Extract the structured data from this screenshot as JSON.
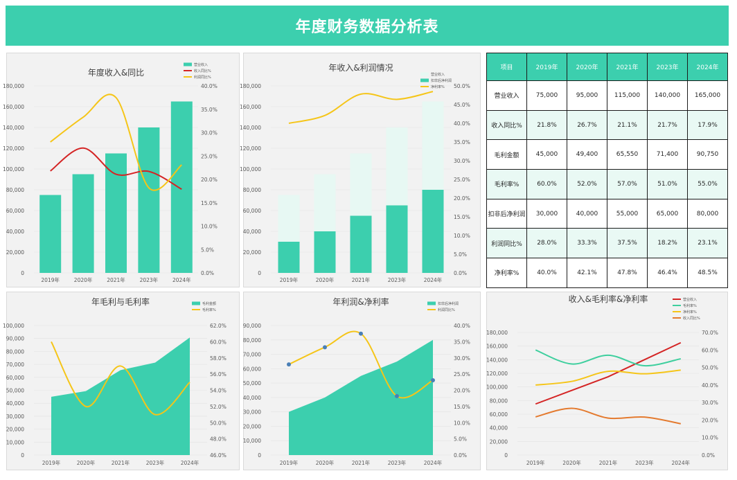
{
  "title": "年度财务数据分析表",
  "table": {
    "headers": [
      "项目",
      "2019年",
      "2020年",
      "2021年",
      "2023年",
      "2024年"
    ],
    "rows": [
      {
        "label": "营业收入",
        "values": [
          "75,000",
          "95,000",
          "115,000",
          "140,000",
          "165,000"
        ]
      },
      {
        "label": "收入同比%",
        "values": [
          "21.8%",
          "26.7%",
          "21.1%",
          "21.7%",
          "17.9%"
        ]
      },
      {
        "label": "毛利金额",
        "values": [
          "45,000",
          "49,400",
          "65,550",
          "71,400",
          "90,750"
        ]
      },
      {
        "label": "毛利率%",
        "values": [
          "60.0%",
          "52.0%",
          "57.0%",
          "51.0%",
          "55.0%"
        ]
      },
      {
        "label": "扣非后净利润",
        "values": [
          "30,000",
          "40,000",
          "55,000",
          "65,000",
          "80,000"
        ]
      },
      {
        "label": "利润同比%",
        "values": [
          "28.0%",
          "33.3%",
          "37.5%",
          "18.2%",
          "23.1%"
        ]
      },
      {
        "label": "净利率%",
        "values": [
          "40.0%",
          "42.1%",
          "47.8%",
          "46.4%",
          "48.5%"
        ]
      }
    ]
  },
  "colors": {
    "teal": "#3ccfae",
    "lightTeal": "#e7f8f3",
    "red": "#d42424",
    "yellow": "#f5c518",
    "green": "#3ecf9e",
    "orange": "#e47a2e",
    "blue": "#4a7fb5"
  },
  "chart_data": [
    {
      "type": "bar",
      "title": "年度收入&同比",
      "categories": [
        "2019年",
        "2020年",
        "2021年",
        "2023年",
        "2024年"
      ],
      "series": [
        {
          "name": "营业收入",
          "kind": "bar",
          "axis": "left",
          "values": [
            75000,
            95000,
            115000,
            140000,
            165000
          ]
        },
        {
          "name": "收入同比%",
          "kind": "line",
          "axis": "right",
          "values": [
            21.8,
            26.7,
            21.1,
            21.7,
            17.9
          ]
        },
        {
          "name": "利润同比%",
          "kind": "line",
          "axis": "right",
          "values": [
            28.0,
            33.3,
            37.5,
            18.2,
            23.1
          ]
        }
      ],
      "yLeftTicks": [
        "0",
        "20,000",
        "40,000",
        "60,000",
        "80,000",
        "100,000",
        "120,000",
        "140,000",
        "160,000",
        "180,000"
      ],
      "yRightTicks": [
        "0.0%",
        "5.0%",
        "10.0%",
        "15.0%",
        "20.0%",
        "25.0%",
        "30.0%",
        "35.0%",
        "40.0%"
      ],
      "yLeftRange": [
        0,
        180000
      ],
      "yRightRange": [
        0,
        40
      ],
      "legend": "top-right"
    },
    {
      "type": "bar",
      "title": "年收入&利润情况",
      "categories": [
        "2019年",
        "2020年",
        "2021年",
        "2023年",
        "2024年"
      ],
      "series": [
        {
          "name": "营业收入",
          "kind": "bar-back",
          "axis": "left",
          "values": [
            75000,
            95000,
            115000,
            140000,
            165000
          ]
        },
        {
          "name": "扣非后净利润",
          "kind": "bar-front",
          "axis": "left",
          "values": [
            30000,
            40000,
            55000,
            65000,
            80000
          ]
        },
        {
          "name": "净利率%",
          "kind": "line",
          "axis": "right",
          "values": [
            40.0,
            42.1,
            47.8,
            46.4,
            48.5
          ]
        }
      ],
      "yLeftTicks": [
        "0",
        "20,000",
        "40,000",
        "60,000",
        "80,000",
        "100,000",
        "120,000",
        "140,000",
        "160,000",
        "180,000"
      ],
      "yRightTicks": [
        "0.0%",
        "5.0%",
        "10.0%",
        "15.0%",
        "20.0%",
        "25.0%",
        "30.0%",
        "35.0%",
        "40.0%",
        "45.0%",
        "50.0%"
      ],
      "yLeftRange": [
        0,
        180000
      ],
      "yRightRange": [
        0,
        50
      ],
      "legend": "top-right"
    },
    {
      "type": "area",
      "title": "年毛利与毛利率",
      "categories": [
        "2019年",
        "2020年",
        "2021年",
        "2023年",
        "2024年"
      ],
      "series": [
        {
          "name": "毛利金额",
          "kind": "area",
          "axis": "left",
          "values": [
            45000,
            49400,
            65550,
            71400,
            90750
          ]
        },
        {
          "name": "毛利率%",
          "kind": "line",
          "axis": "right",
          "values": [
            60.0,
            52.0,
            57.0,
            51.0,
            55.0
          ]
        }
      ],
      "yLeftTicks": [
        "0",
        "10,000",
        "20,000",
        "30,000",
        "40,000",
        "50,000",
        "60,000",
        "70,000",
        "80,000",
        "90,000",
        "100,000"
      ],
      "yRightTicks": [
        "46.0%",
        "48.0%",
        "50.0%",
        "52.0%",
        "54.0%",
        "56.0%",
        "58.0%",
        "60.0%",
        "62.0%"
      ],
      "yLeftRange": [
        0,
        100000
      ],
      "yRightRange": [
        46,
        62
      ],
      "legend": "top-right"
    },
    {
      "type": "area",
      "title": "年利润&净利率",
      "categories": [
        "2019年",
        "2020年",
        "2021年",
        "2023年",
        "2024年"
      ],
      "series": [
        {
          "name": "扣非后净利润",
          "kind": "area",
          "axis": "left",
          "values": [
            30000,
            40000,
            55000,
            65000,
            80000
          ]
        },
        {
          "name": "利润同比%",
          "kind": "line-marker",
          "axis": "right",
          "values": [
            28.0,
            33.3,
            37.5,
            18.2,
            23.1
          ]
        }
      ],
      "yLeftTicks": [
        "0",
        "10,000",
        "20,000",
        "30,000",
        "40,000",
        "50,000",
        "60,000",
        "70,000",
        "80,000",
        "90,000"
      ],
      "yRightTicks": [
        "0.0%",
        "5.0%",
        "10.0%",
        "15.0%",
        "20.0%",
        "25.0%",
        "30.0%",
        "35.0%",
        "40.0%"
      ],
      "yLeftRange": [
        0,
        90000
      ],
      "yRightRange": [
        0,
        40
      ],
      "legend": "top-right"
    },
    {
      "type": "line",
      "title": "收入&毛利率&净利率",
      "categories": [
        "2019年",
        "2020年",
        "2021年",
        "2023年",
        "2024年"
      ],
      "series": [
        {
          "name": "营业收入",
          "kind": "line-straight",
          "axis": "left",
          "values": [
            75000,
            95000,
            115000,
            140000,
            165000
          ]
        },
        {
          "name": "毛利率%",
          "kind": "line",
          "axis": "right",
          "values": [
            60.0,
            52.0,
            57.0,
            51.0,
            55.0
          ]
        },
        {
          "name": "净利率%",
          "kind": "line",
          "axis": "right",
          "values": [
            40.0,
            42.1,
            47.8,
            46.4,
            48.5
          ]
        },
        {
          "name": "收入同比%",
          "kind": "line",
          "axis": "right",
          "values": [
            21.8,
            26.7,
            21.1,
            21.7,
            17.9
          ]
        }
      ],
      "yLeftTicks": [
        "0",
        "20,000",
        "40,000",
        "60,000",
        "80,000",
        "100,000",
        "120,000",
        "140,000",
        "160,000",
        "180,000"
      ],
      "yRightTicks": [
        "0.0%",
        "10.0%",
        "20.0%",
        "30.0%",
        "40.0%",
        "50.0%",
        "60.0%",
        "70.0%"
      ],
      "yLeftRange": [
        0,
        180000
      ],
      "yRightRange": [
        0,
        70
      ],
      "legend": "top-right"
    }
  ]
}
